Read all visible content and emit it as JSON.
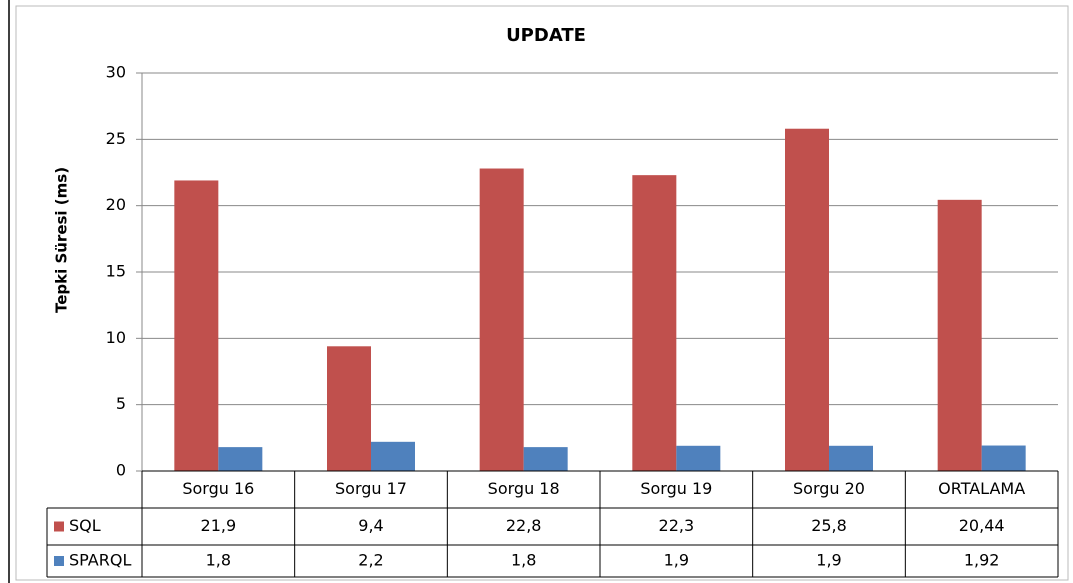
{
  "chart_data": {
    "type": "bar",
    "title": "UPDATE",
    "y_label": "Tepki Süresi (ms)",
    "categories": [
      "Sorgu 16",
      "Sorgu 17",
      "Sorgu 18",
      "Sorgu 19",
      "Sorgu 20",
      "ORTALAMA"
    ],
    "series": [
      {
        "name": "SQL",
        "color": "#c0504d",
        "values": [
          21.9,
          9.4,
          22.8,
          22.3,
          25.8,
          20.44
        ],
        "value_labels": [
          "21,9",
          "9,4",
          "22,8",
          "22,3",
          "25,8",
          "20,44"
        ]
      },
      {
        "name": "SPARQL",
        "color": "#4f81bd",
        "values": [
          1.8,
          2.2,
          1.8,
          1.9,
          1.9,
          1.92
        ],
        "value_labels": [
          "1,8",
          "2,2",
          "1,8",
          "1,9",
          "1,9",
          "1,92"
        ]
      }
    ],
    "ylim": [
      0,
      30
    ],
    "yticks": [
      0,
      5,
      10,
      15,
      20,
      25,
      30
    ],
    "grid": true
  }
}
